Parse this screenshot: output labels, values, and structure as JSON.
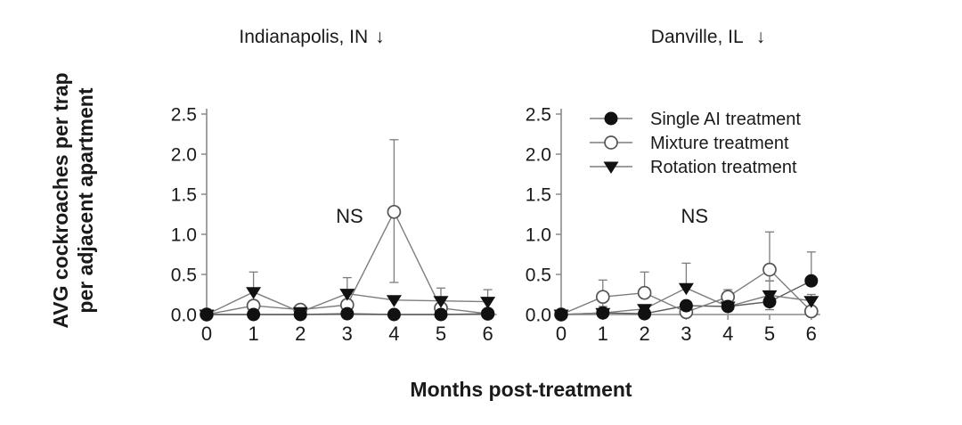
{
  "figure": {
    "background": "#ffffff",
    "ylabel_line1": "AVG cockroaches per trap",
    "ylabel_line2": "per adjacent apartment",
    "xlabel": "Months post-treatment"
  },
  "icons": {
    "down_arrow": "↓"
  },
  "colors": {
    "text": "#1a1a1a",
    "axis": "#8a8a8a",
    "line_gray": "#7d7d7d",
    "line_dark": "#5a5a5a",
    "marker_black": "#111111",
    "marker_open_stroke": "#555555",
    "error_bar": "#7d7d7d"
  },
  "legend": {
    "position": "inside-top-left-of-right-panel",
    "items": [
      "Single AI treatment",
      "Mixture treatment",
      "Rotation treatment"
    ]
  },
  "chart_data": [
    {
      "type": "line",
      "panel": "left",
      "title": "Indianapolis, IN",
      "annotation": {
        "text": "NS",
        "x": 3.05,
        "y": 1.22
      },
      "x": [
        0,
        1,
        2,
        3,
        4,
        5,
        6
      ],
      "xticks": [
        "0",
        "1",
        "2",
        "3",
        "4",
        "5",
        "6"
      ],
      "yticks": [
        "0.0",
        "0.5",
        "1.0",
        "1.5",
        "2.0",
        "2.5"
      ],
      "ylim": [
        0,
        2.5
      ],
      "grid": false,
      "show_legend": false,
      "series": [
        {
          "name": "Single AI treatment",
          "marker": "filled-circle",
          "z": 1,
          "values": [
            0,
            0,
            0,
            0.01,
            0,
            0,
            0.01
          ],
          "err_up": [
            0,
            0,
            0,
            0,
            0,
            0,
            0
          ],
          "err_down": [
            0,
            0,
            0,
            0,
            0,
            0,
            0
          ]
        },
        {
          "name": "Mixture treatment",
          "marker": "open-circle",
          "z": 0,
          "values": [
            0,
            0.11,
            0.06,
            0.12,
            1.28,
            0.08,
            0.01
          ],
          "err_up": [
            0,
            0,
            0,
            0,
            0.9,
            0,
            0
          ],
          "err_down": [
            0,
            0,
            0,
            0,
            0.88,
            0,
            0
          ]
        },
        {
          "name": "Rotation treatment",
          "marker": "filled-triangle",
          "z": 2,
          "values": [
            0,
            0.28,
            0.03,
            0.26,
            0.18,
            0.17,
            0.16
          ],
          "err_up": [
            0,
            0.25,
            0,
            0.2,
            0,
            0.16,
            0.15
          ],
          "err_down": [
            0,
            0,
            0,
            0,
            0,
            0,
            0
          ]
        }
      ]
    },
    {
      "type": "line",
      "panel": "right",
      "title": "Danville, IL",
      "annotation": {
        "text": "NS",
        "x": 3.2,
        "y": 1.22
      },
      "x": [
        0,
        1,
        2,
        3,
        4,
        5,
        6
      ],
      "xticks": [
        "0",
        "1",
        "2",
        "3",
        "4",
        "5",
        "6"
      ],
      "yticks": [
        "0.0",
        "0.5",
        "1.0",
        "1.5",
        "2.0",
        "2.5"
      ],
      "ylim": [
        0,
        2.5
      ],
      "grid": false,
      "show_legend": true,
      "series": [
        {
          "name": "Single AI treatment",
          "marker": "filled-circle",
          "z": 1,
          "values": [
            0,
            0.02,
            0.01,
            0.11,
            0.1,
            0.16,
            0.42
          ],
          "err_up": [
            0,
            0,
            0,
            0,
            0,
            0,
            0.36
          ],
          "err_down": [
            0,
            0,
            0,
            0,
            0,
            0.1,
            0
          ]
        },
        {
          "name": "Mixture treatment",
          "marker": "open-circle",
          "z": 0,
          "values": [
            0,
            0.22,
            0.27,
            0.03,
            0.22,
            0.56,
            0.04
          ],
          "err_up": [
            0,
            0.21,
            0.26,
            0,
            0.09,
            0.47,
            0
          ],
          "err_down": [
            0,
            0.12,
            0,
            0,
            0,
            0.14,
            0
          ]
        },
        {
          "name": "Rotation treatment",
          "marker": "filled-triangle",
          "z": 2,
          "values": [
            0,
            0.02,
            0.07,
            0.33,
            0.1,
            0.24,
            0.17
          ],
          "err_up": [
            0,
            0,
            0,
            0.31,
            0,
            0.18,
            0.08
          ],
          "err_down": [
            0,
            0,
            0,
            0,
            0,
            0,
            0
          ]
        }
      ]
    }
  ]
}
